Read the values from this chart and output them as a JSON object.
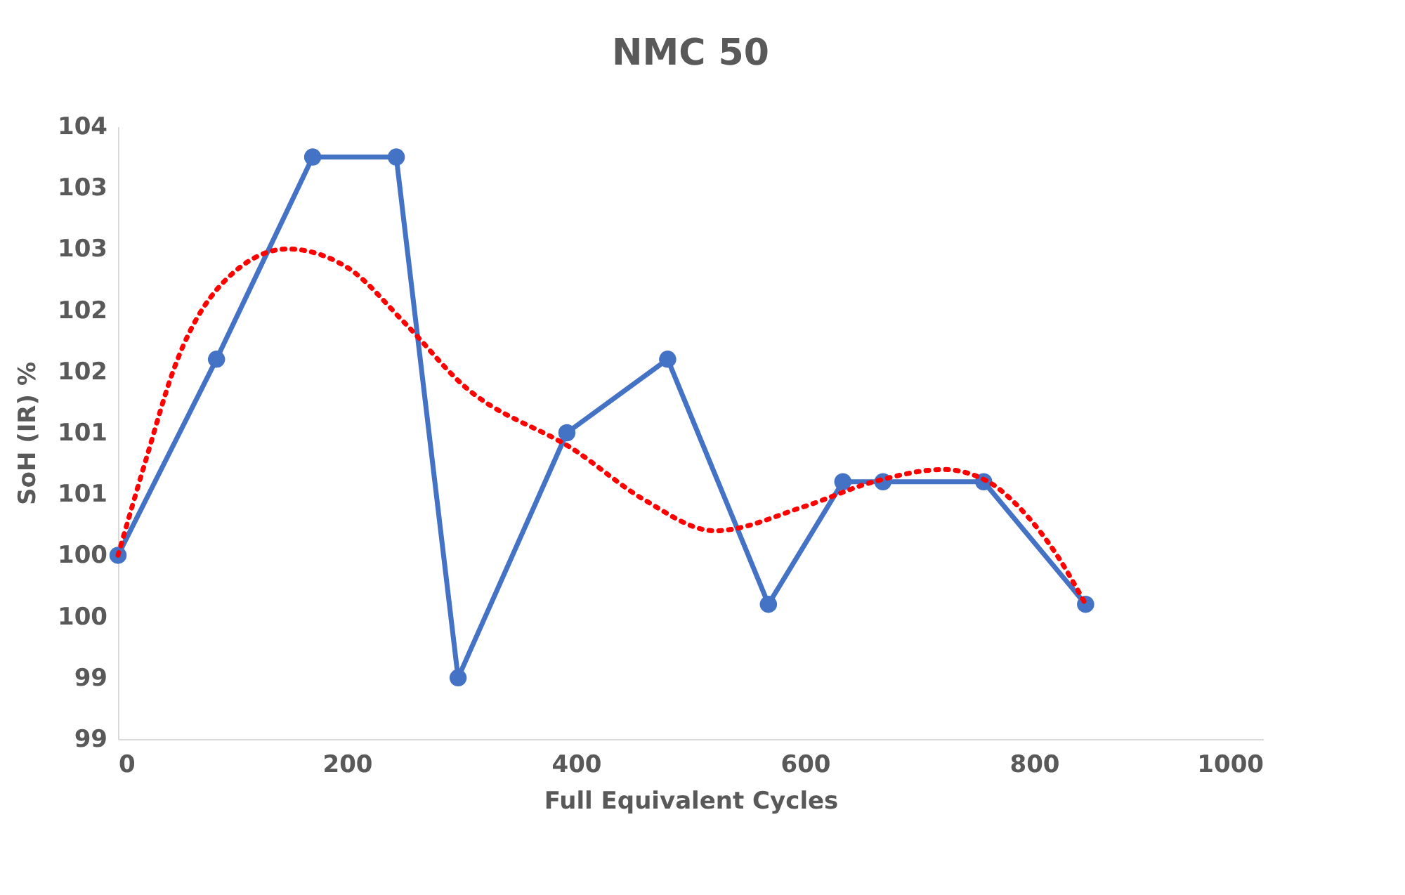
{
  "chart_data": {
    "type": "line",
    "title": "NMC 50",
    "xlabel": "Full Equivalent Cycles",
    "ylabel": "SoH (IR) %",
    "xlim": [
      0,
      1000
    ],
    "xticks": [
      0,
      200,
      400,
      600,
      800,
      1000
    ],
    "ylim": [
      98.5,
      103.5
    ],
    "yticks": [
      {
        "value": 98.5,
        "label": "99"
      },
      {
        "value": 99,
        "label": "99"
      },
      {
        "value": 99.5,
        "label": "100"
      },
      {
        "value": 100,
        "label": "100"
      },
      {
        "value": 100.5,
        "label": "101"
      },
      {
        "value": 101,
        "label": "101"
      },
      {
        "value": 101.5,
        "label": "102"
      },
      {
        "value": 102,
        "label": "102"
      },
      {
        "value": 102.5,
        "label": "103"
      },
      {
        "value": 103,
        "label": "103"
      },
      {
        "value": 103.5,
        "label": "104"
      }
    ],
    "grid": false,
    "series": [
      {
        "color": "#4472c4",
        "marker": "circle",
        "line_style": "solid",
        "x": [
          0,
          86,
          170,
          243,
          297,
          392,
          480,
          568,
          633,
          668,
          756,
          845
        ],
        "values": [
          100.0,
          101.6,
          103.25,
          103.25,
          99.0,
          101.0,
          101.6,
          99.6,
          100.6,
          100.6,
          100.6,
          99.6
        ]
      },
      {
        "color": "#ff0000",
        "marker": "none",
        "line_style": "dotted",
        "x": [
          0,
          25,
          48,
          100,
          148,
          200,
          250,
          300,
          400,
          460,
          521,
          600,
          660,
          721,
          760,
          786,
          820,
          845
        ],
        "values": [
          100.0,
          100.8,
          101.5,
          102.3,
          102.5,
          102.35,
          101.9,
          101.4,
          100.85,
          100.45,
          100.2,
          100.4,
          100.6,
          100.7,
          100.6,
          100.4,
          100.0,
          99.6
        ]
      }
    ]
  }
}
